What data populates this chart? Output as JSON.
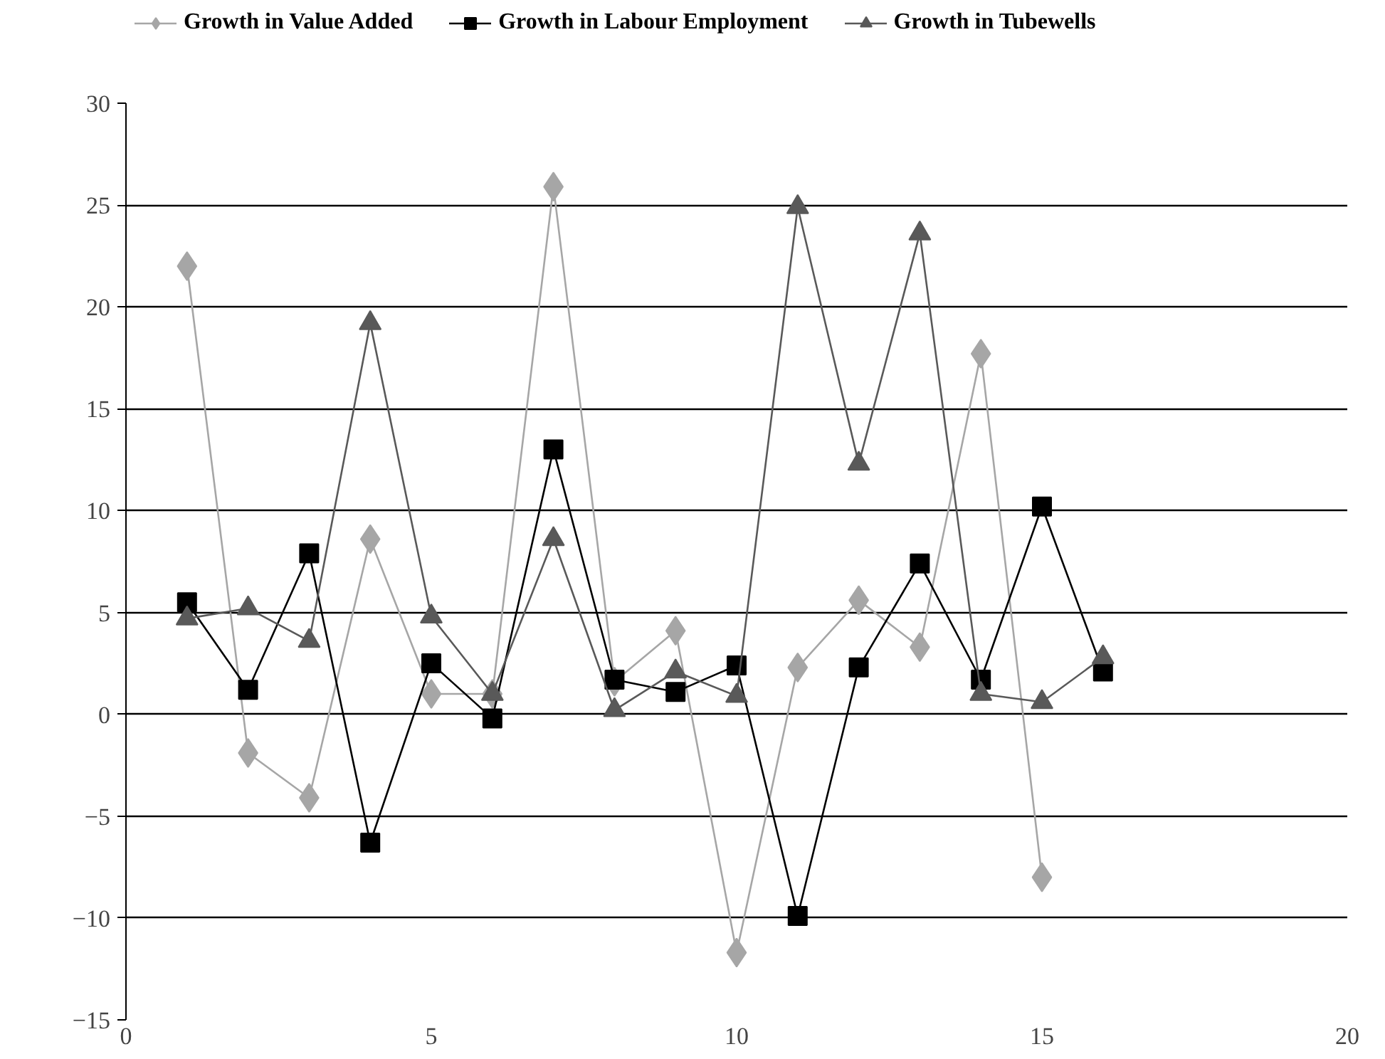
{
  "chart_data": {
    "type": "line",
    "x": [
      1,
      2,
      3,
      4,
      5,
      6,
      7,
      8,
      9,
      10,
      11,
      12,
      13,
      14,
      15,
      16
    ],
    "series": [
      {
        "name": "Growth in Value Added",
        "color": "#a6a6a6",
        "marker": "diamond",
        "values": [
          22.0,
          -1.9,
          -4.1,
          8.6,
          1.0,
          1.0,
          25.9,
          1.6,
          4.1,
          -11.7,
          2.3,
          5.6,
          3.3,
          17.7,
          -8.0,
          null
        ]
      },
      {
        "name": "Growth in Labour Employment",
        "color": "#000000",
        "marker": "square",
        "values": [
          5.5,
          1.2,
          7.9,
          -6.3,
          2.5,
          -0.2,
          13.0,
          1.7,
          1.1,
          2.4,
          -9.9,
          2.3,
          7.4,
          1.7,
          10.2,
          2.1
        ]
      },
      {
        "name": "Growth in Tubewells",
        "color": "#595959",
        "marker": "triangle",
        "values": [
          4.7,
          5.2,
          3.6,
          19.2,
          4.8,
          1.0,
          8.6,
          0.2,
          2.1,
          0.9,
          24.9,
          12.3,
          23.6,
          1.0,
          0.6,
          2.8
        ]
      }
    ],
    "xlim": [
      0,
      20
    ],
    "xticks": [
      0,
      5,
      10,
      15,
      20
    ],
    "ylim": [
      -15,
      30
    ],
    "yticks": [
      -15,
      -10,
      -5,
      0,
      5,
      10,
      15,
      20,
      25,
      30
    ],
    "grid": "y",
    "legend": "top"
  }
}
